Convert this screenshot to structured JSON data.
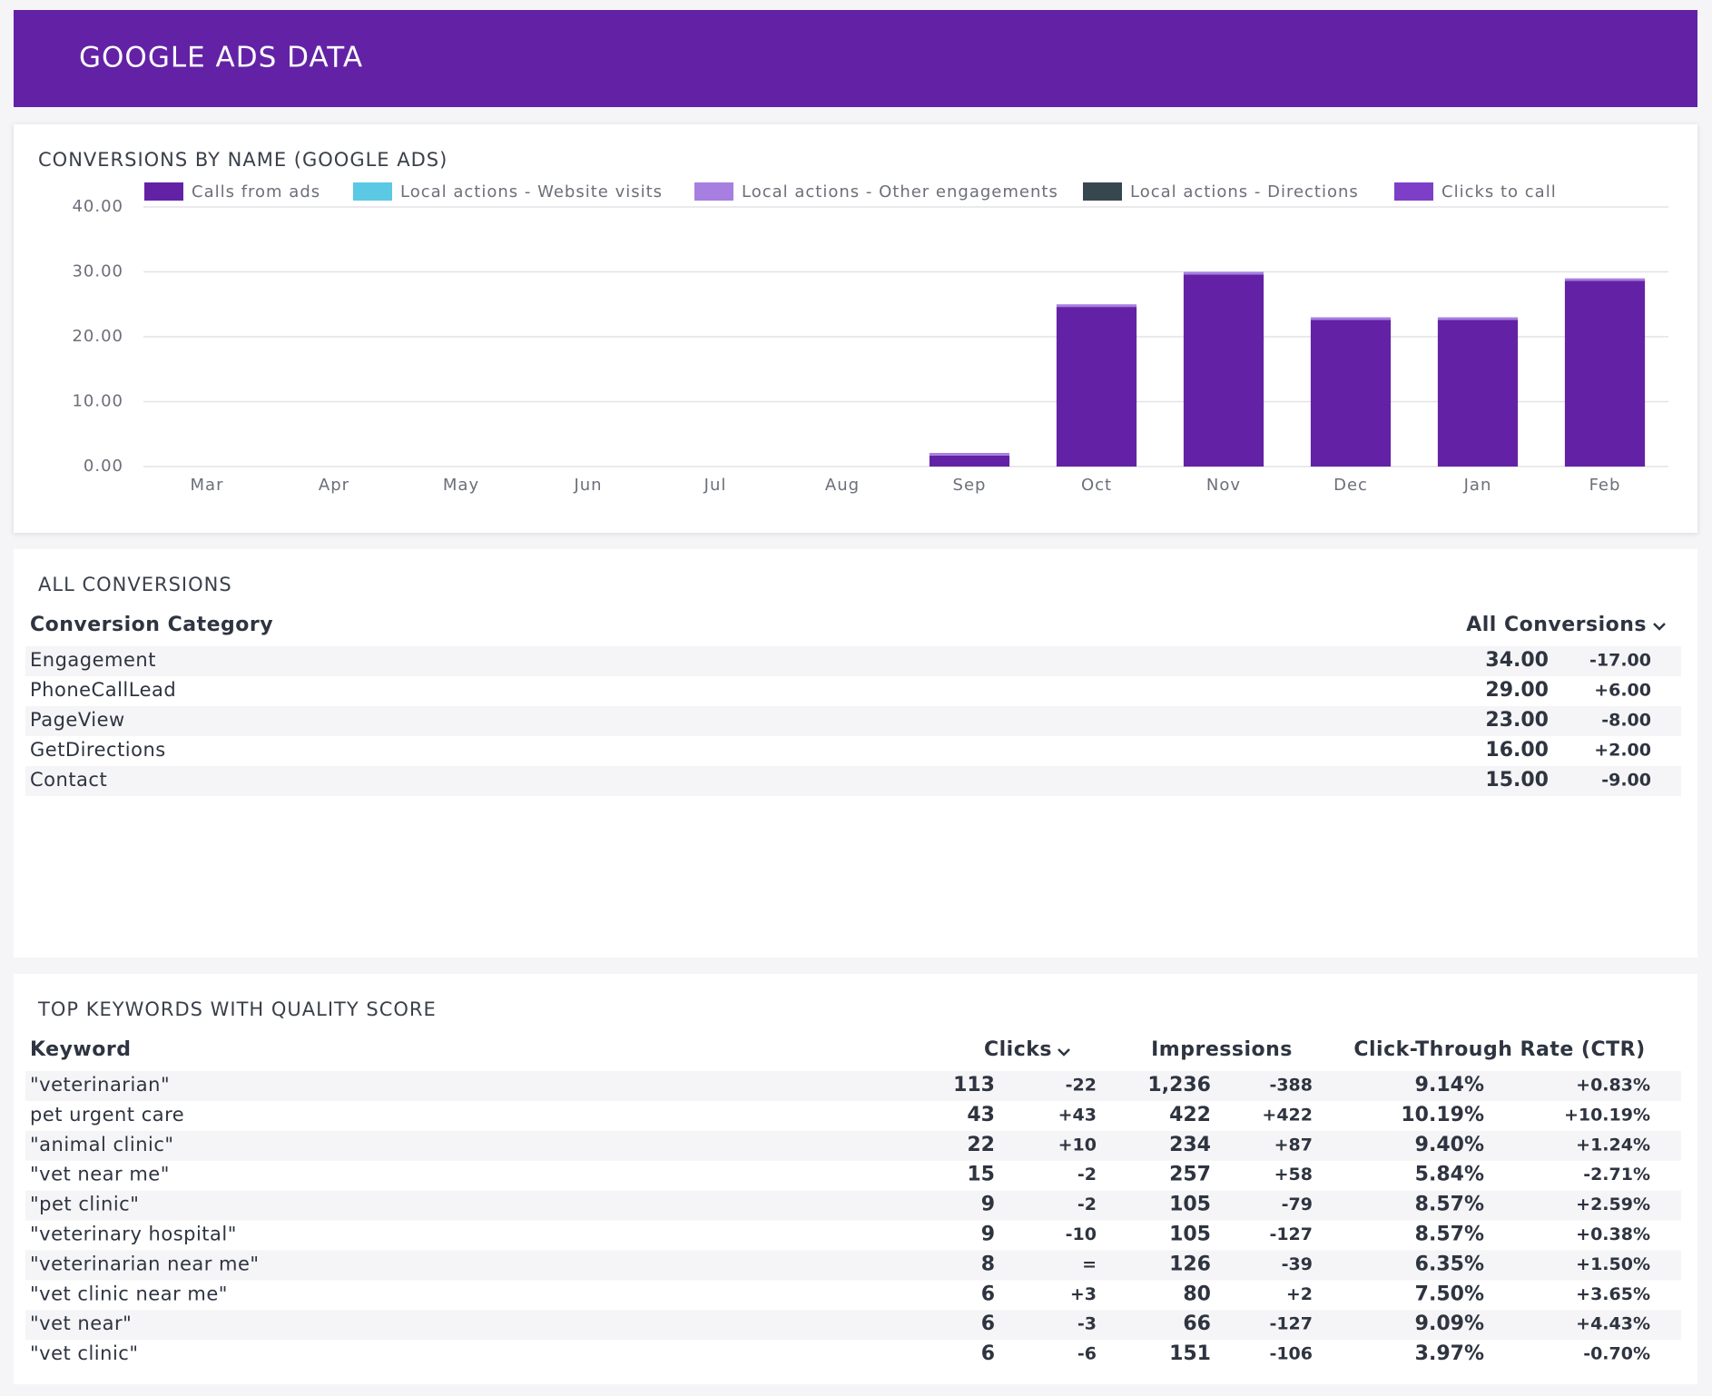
{
  "header": {
    "title": "GOOGLE ADS DATA"
  },
  "chart_data": {
    "type": "bar",
    "stacked": true,
    "title": "CONVERSIONS BY NAME (GOOGLE ADS)",
    "categories": [
      "Mar",
      "Apr",
      "May",
      "Jun",
      "Jul",
      "Aug",
      "Sep",
      "Oct",
      "Nov",
      "Dec",
      "Jan",
      "Feb"
    ],
    "series": [
      {
        "name": "Calls from ads",
        "color": "#6322a6",
        "values": [
          0,
          0,
          0,
          0,
          0,
          0,
          1.7,
          24.6,
          29.6,
          22.6,
          22.6,
          28.6
        ]
      },
      {
        "name": "Local actions - Website visits",
        "color": "#5bc8e4",
        "values": [
          0,
          0,
          0,
          0,
          0,
          0,
          0,
          0,
          0,
          0,
          0,
          0
        ]
      },
      {
        "name": "Local actions - Other engagements",
        "color": "#a67fe0",
        "values": [
          0,
          0,
          0,
          0,
          0,
          0,
          0.4,
          0.4,
          0.4,
          0.4,
          0.4,
          0.4
        ]
      },
      {
        "name": "Local actions - Directions",
        "color": "#37474f",
        "values": [
          0,
          0,
          0,
          0,
          0,
          0,
          0,
          0,
          0,
          0,
          0,
          0
        ]
      },
      {
        "name": "Clicks to call",
        "color": "#7e3fc8",
        "values": [
          0,
          0,
          0,
          0,
          0,
          0,
          0,
          0,
          0,
          0,
          0,
          0
        ]
      }
    ],
    "ylim": [
      0,
      40
    ],
    "yticks": [
      {
        "value": 0,
        "label": "0.00"
      },
      {
        "value": 10,
        "label": "10.00"
      },
      {
        "value": 20,
        "label": "20.00"
      },
      {
        "value": 30,
        "label": "30.00"
      },
      {
        "value": 40,
        "label": "40.00"
      }
    ],
    "grid": true
  },
  "all_conversions": {
    "title": "ALL CONVERSIONS",
    "columns": [
      "Conversion Category",
      "All Conversions"
    ],
    "rows": [
      [
        "Engagement",
        "34.00",
        "-17.00"
      ],
      [
        "PhoneCallLead",
        "29.00",
        "+6.00"
      ],
      [
        "PageView",
        "23.00",
        "-8.00"
      ],
      [
        "GetDirections",
        "16.00",
        "+2.00"
      ],
      [
        "Contact",
        "15.00",
        "-9.00"
      ]
    ]
  },
  "keywords": {
    "title": "TOP KEYWORDS WITH QUALITY SCORE",
    "columns": [
      "Keyword",
      "Clicks",
      "Impressions",
      "Click-Through Rate (CTR)"
    ],
    "rows": [
      [
        "\"veterinarian\"",
        "113",
        "-22",
        "1,236",
        "-388",
        "9.14%",
        "+0.83%"
      ],
      [
        "pet urgent care",
        "43",
        "+43",
        "422",
        "+422",
        "10.19%",
        "+10.19%"
      ],
      [
        "\"animal clinic\"",
        "22",
        "+10",
        "234",
        "+87",
        "9.40%",
        "+1.24%"
      ],
      [
        "\"vet near me\"",
        "15",
        "-2",
        "257",
        "+58",
        "5.84%",
        "-2.71%"
      ],
      [
        "\"pet clinic\"",
        "9",
        "-2",
        "105",
        "-79",
        "8.57%",
        "+2.59%"
      ],
      [
        "\"veterinary hospital\"",
        "9",
        "-10",
        "105",
        "-127",
        "8.57%",
        "+0.38%"
      ],
      [
        "\"veterinarian near me\"",
        "8",
        "=",
        "126",
        "-39",
        "6.35%",
        "+1.50%"
      ],
      [
        "\"vet clinic near me\"",
        "6",
        "+3",
        "80",
        "+2",
        "7.50%",
        "+3.65%"
      ],
      [
        "\"vet near\"",
        "6",
        "-3",
        "66",
        "-127",
        "9.09%",
        "+4.43%"
      ],
      [
        "\"vet clinic\"",
        "6",
        "-6",
        "151",
        "-106",
        "3.97%",
        "-0.70%"
      ]
    ]
  }
}
